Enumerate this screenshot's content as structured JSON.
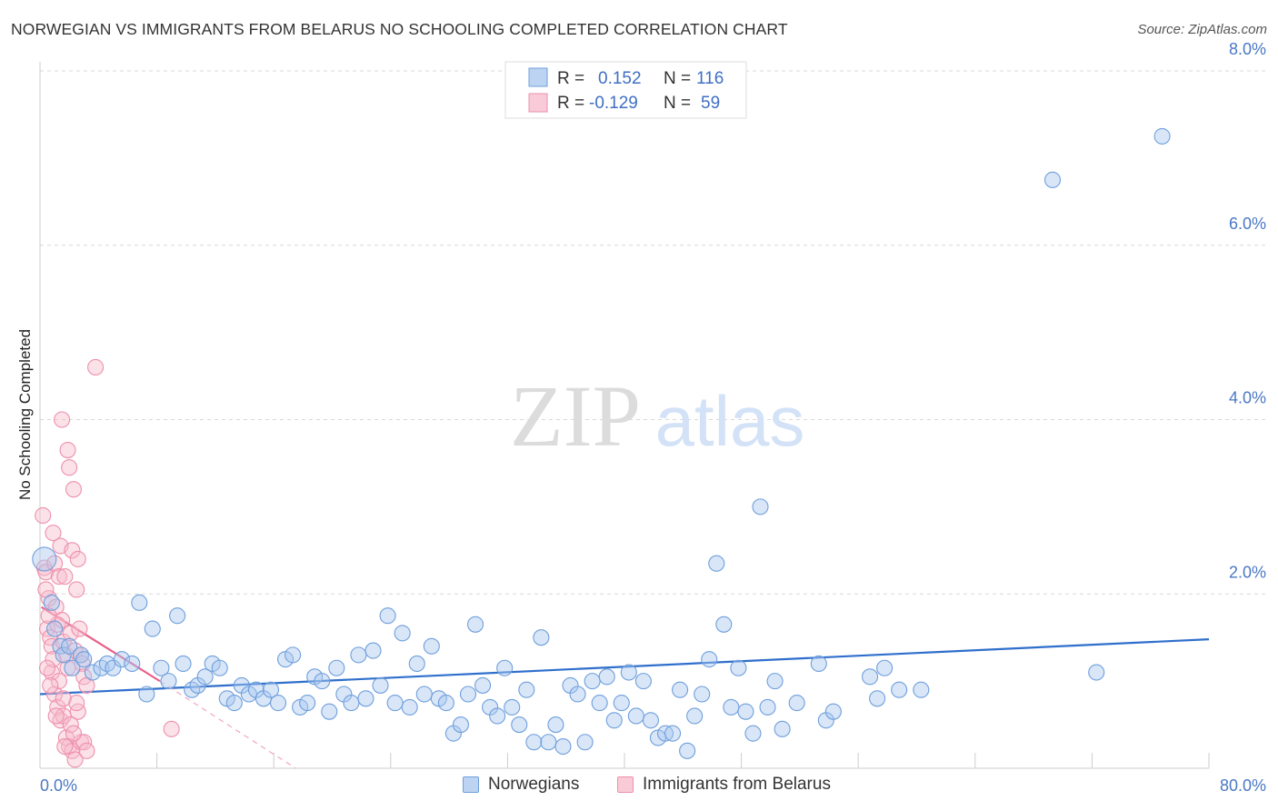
{
  "title": "NORWEGIAN VS IMMIGRANTS FROM BELARUS NO SCHOOLING COMPLETED CORRELATION CHART",
  "source": "Source: ZipAtlas.com",
  "watermark": {
    "zip": "ZIP",
    "atlas": "atlas"
  },
  "chart_data": {
    "type": "scatter",
    "xlabel": "",
    "ylabel": "No Schooling Completed",
    "xlim": [
      0,
      80
    ],
    "ylim": [
      0,
      8
    ],
    "x_tick_labels": [
      "0.0%",
      "80.0%"
    ],
    "y_ticks": [
      2,
      4,
      6,
      8
    ],
    "y_tick_labels": [
      "2.0%",
      "4.0%",
      "6.0%",
      "8.0%"
    ],
    "grid": true,
    "legend": {
      "position": "top-center",
      "rows": [
        {
          "r_label": "R =",
          "r_value": "0.152",
          "n_label": "N =",
          "n_value": "116"
        },
        {
          "r_label": "R =",
          "r_value": "-0.129",
          "n_label": "N =",
          "n_value": "59"
        }
      ]
    },
    "series": [
      {
        "name": "Norwegians",
        "color": "#6f9fdc",
        "fill": "#a9c8ef",
        "trend": {
          "x": [
            0,
            80
          ],
          "y": [
            0.85,
            1.48
          ]
        },
        "points": [
          [
            0.3,
            2.4
          ],
          [
            0.8,
            1.9
          ],
          [
            1.0,
            1.6
          ],
          [
            1.4,
            1.4
          ],
          [
            1.6,
            1.3
          ],
          [
            2.0,
            1.4
          ],
          [
            2.2,
            1.15
          ],
          [
            2.8,
            1.3
          ],
          [
            3.0,
            1.25
          ],
          [
            3.6,
            1.1
          ],
          [
            4.2,
            1.15
          ],
          [
            4.6,
            1.2
          ],
          [
            5.0,
            1.15
          ],
          [
            5.6,
            1.25
          ],
          [
            6.3,
            1.2
          ],
          [
            6.8,
            1.9
          ],
          [
            7.3,
            0.85
          ],
          [
            7.7,
            1.6
          ],
          [
            8.3,
            1.15
          ],
          [
            8.8,
            1.0
          ],
          [
            9.4,
            1.75
          ],
          [
            9.8,
            1.2
          ],
          [
            10.4,
            0.9
          ],
          [
            10.8,
            0.95
          ],
          [
            11.3,
            1.05
          ],
          [
            11.8,
            1.2
          ],
          [
            12.3,
            1.15
          ],
          [
            12.8,
            0.8
          ],
          [
            13.3,
            0.75
          ],
          [
            13.8,
            0.95
          ],
          [
            14.3,
            0.85
          ],
          [
            14.8,
            0.9
          ],
          [
            15.3,
            0.8
          ],
          [
            15.8,
            0.9
          ],
          [
            16.3,
            0.75
          ],
          [
            16.8,
            1.25
          ],
          [
            17.3,
            1.3
          ],
          [
            17.8,
            0.7
          ],
          [
            18.3,
            0.75
          ],
          [
            18.8,
            1.05
          ],
          [
            19.3,
            1.0
          ],
          [
            19.8,
            0.65
          ],
          [
            20.3,
            1.15
          ],
          [
            20.8,
            0.85
          ],
          [
            21.3,
            0.75
          ],
          [
            21.8,
            1.3
          ],
          [
            22.3,
            0.8
          ],
          [
            22.8,
            1.35
          ],
          [
            23.3,
            0.95
          ],
          [
            23.8,
            1.75
          ],
          [
            24.3,
            0.75
          ],
          [
            24.8,
            1.55
          ],
          [
            25.3,
            0.7
          ],
          [
            25.8,
            1.2
          ],
          [
            26.3,
            0.85
          ],
          [
            26.8,
            1.4
          ],
          [
            27.3,
            0.8
          ],
          [
            27.8,
            0.75
          ],
          [
            28.3,
            0.4
          ],
          [
            28.8,
            0.5
          ],
          [
            29.3,
            0.85
          ],
          [
            29.8,
            1.65
          ],
          [
            30.3,
            0.95
          ],
          [
            30.8,
            0.7
          ],
          [
            31.3,
            0.6
          ],
          [
            31.8,
            1.15
          ],
          [
            32.3,
            0.7
          ],
          [
            32.8,
            0.5
          ],
          [
            33.3,
            0.9
          ],
          [
            33.8,
            0.3
          ],
          [
            34.3,
            1.5
          ],
          [
            34.8,
            0.3
          ],
          [
            35.3,
            0.5
          ],
          [
            35.8,
            0.25
          ],
          [
            36.3,
            0.95
          ],
          [
            36.8,
            0.85
          ],
          [
            37.3,
            0.3
          ],
          [
            37.8,
            1.0
          ],
          [
            38.3,
            0.75
          ],
          [
            38.8,
            1.05
          ],
          [
            39.3,
            0.55
          ],
          [
            39.8,
            0.75
          ],
          [
            40.3,
            1.1
          ],
          [
            40.8,
            0.6
          ],
          [
            41.3,
            1.0
          ],
          [
            41.8,
            0.55
          ],
          [
            42.3,
            0.35
          ],
          [
            42.8,
            0.4
          ],
          [
            43.3,
            0.4
          ],
          [
            43.8,
            0.9
          ],
          [
            44.3,
            0.2
          ],
          [
            44.8,
            0.6
          ],
          [
            45.3,
            0.85
          ],
          [
            45.8,
            1.25
          ],
          [
            46.3,
            2.35
          ],
          [
            46.8,
            1.65
          ],
          [
            47.3,
            0.7
          ],
          [
            47.8,
            1.15
          ],
          [
            48.3,
            0.65
          ],
          [
            48.8,
            0.4
          ],
          [
            49.3,
            3.0
          ],
          [
            49.8,
            0.7
          ],
          [
            50.3,
            1.0
          ],
          [
            50.8,
            0.45
          ],
          [
            51.8,
            0.75
          ],
          [
            53.3,
            1.2
          ],
          [
            53.8,
            0.55
          ],
          [
            54.3,
            0.65
          ],
          [
            56.8,
            1.05
          ],
          [
            57.3,
            0.8
          ],
          [
            57.8,
            1.15
          ],
          [
            58.8,
            0.9
          ],
          [
            60.3,
            0.9
          ],
          [
            69.3,
            6.75
          ],
          [
            72.3,
            1.1
          ],
          [
            76.8,
            7.25
          ]
        ]
      },
      {
        "name": "Immigrants from Belarus",
        "color": "#ee90ad",
        "fill": "#f7bccd",
        "trend": {
          "x": [
            0.1,
            8.2
          ],
          "y": [
            1.85,
            1.0
          ]
        },
        "trend_dashed": {
          "x": [
            8.2,
            17.5
          ],
          "y": [
            1.0,
            0.0
          ]
        },
        "points": [
          [
            0.2,
            2.9
          ],
          [
            0.3,
            2.3
          ],
          [
            0.4,
            2.25
          ],
          [
            0.5,
            1.6
          ],
          [
            0.6,
            1.95
          ],
          [
            0.7,
            1.5
          ],
          [
            0.8,
            1.4
          ],
          [
            0.9,
            2.7
          ],
          [
            1.0,
            2.35
          ],
          [
            1.1,
            1.85
          ],
          [
            1.2,
            1.65
          ],
          [
            1.3,
            2.2
          ],
          [
            1.4,
            2.55
          ],
          [
            1.5,
            1.7
          ],
          [
            1.6,
            1.45
          ],
          [
            1.7,
            2.2
          ],
          [
            1.8,
            1.3
          ],
          [
            1.9,
            3.65
          ],
          [
            2.0,
            3.45
          ],
          [
            2.1,
            1.55
          ],
          [
            2.2,
            2.5
          ],
          [
            2.3,
            3.2
          ],
          [
            2.4,
            1.35
          ],
          [
            2.5,
            2.05
          ],
          [
            2.6,
            2.4
          ],
          [
            2.7,
            1.6
          ],
          [
            2.8,
            1.3
          ],
          [
            2.9,
            1.2
          ],
          [
            3.0,
            1.05
          ],
          [
            3.2,
            0.95
          ],
          [
            0.4,
            2.05
          ],
          [
            0.6,
            1.75
          ],
          [
            0.8,
            1.1
          ],
          [
            1.0,
            0.85
          ],
          [
            1.2,
            0.7
          ],
          [
            1.4,
            0.55
          ],
          [
            1.6,
            0.6
          ],
          [
            1.8,
            0.35
          ],
          [
            2.0,
            0.25
          ],
          [
            2.2,
            0.2
          ],
          [
            2.4,
            0.1
          ],
          [
            2.6,
            0.65
          ],
          [
            2.8,
            0.3
          ],
          [
            3.0,
            0.3
          ],
          [
            3.2,
            0.2
          ],
          [
            1.5,
            4.0
          ],
          [
            3.8,
            4.6
          ],
          [
            9.0,
            0.45
          ],
          [
            1.7,
            0.25
          ],
          [
            2.1,
            0.5
          ],
          [
            1.3,
            1.0
          ],
          [
            1.9,
            1.15
          ],
          [
            0.9,
            1.25
          ],
          [
            2.5,
            0.75
          ],
          [
            1.1,
            0.6
          ],
          [
            0.5,
            1.15
          ],
          [
            2.3,
            0.4
          ],
          [
            1.6,
            0.8
          ],
          [
            0.7,
            0.95
          ]
        ]
      }
    ]
  }
}
